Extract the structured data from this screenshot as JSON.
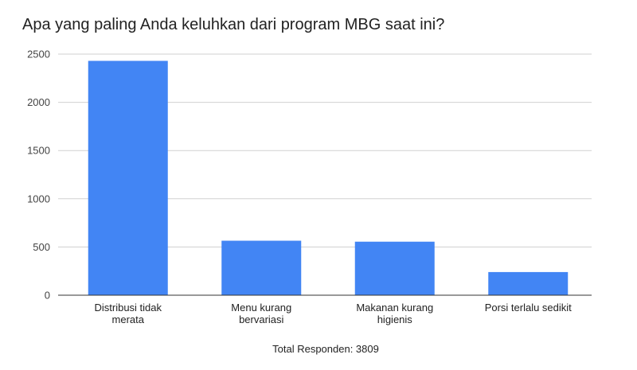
{
  "chart_data": {
    "type": "bar",
    "title": "Apa yang paling Anda keluhkan dari program MBG saat ini?",
    "categories": [
      [
        "Distribusi tidak",
        "merata"
      ],
      [
        "Menu kurang",
        "bervariasi"
      ],
      [
        "Makanan kurang",
        "higienis"
      ],
      [
        "Porsi terlalu sedikit"
      ]
    ],
    "values": [
      2430,
      565,
      555,
      240
    ],
    "xlabel": "Total Responden: 3809",
    "ylabel": "",
    "ylim": [
      0,
      2500
    ],
    "yticks": [
      0,
      500,
      1000,
      1500,
      2000,
      2500
    ],
    "bar_color": "#4285f4",
    "grid": true,
    "legend": "none"
  }
}
